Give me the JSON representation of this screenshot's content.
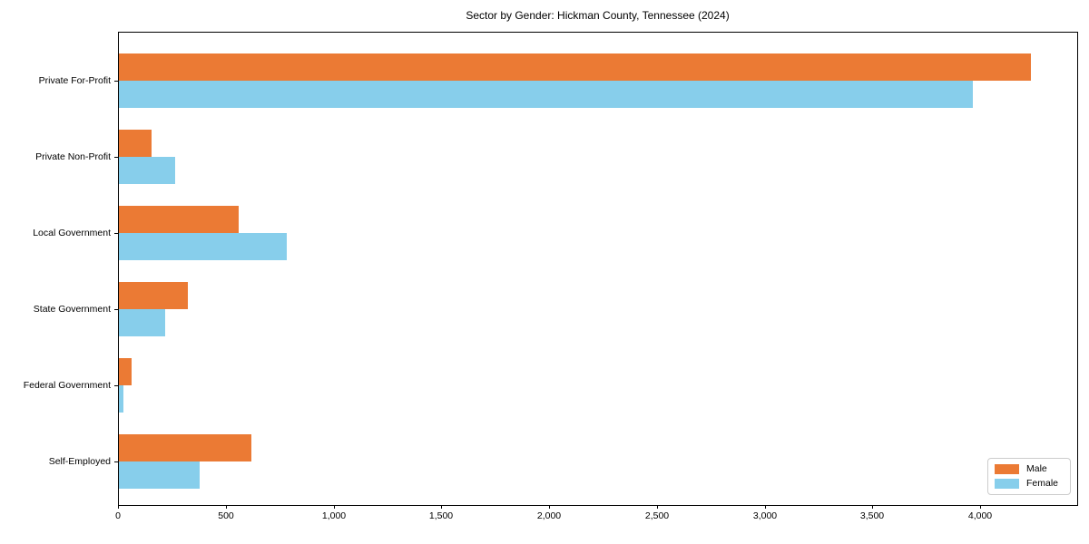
{
  "title": "Sector by Gender: Hickman County, Tennessee (2024)",
  "chart_data": {
    "type": "bar",
    "orientation": "horizontal",
    "title": "Sector by Gender: Hickman County, Tennessee (2024)",
    "categories": [
      "Private For-Profit",
      "Private Non-Profit",
      "Local Government",
      "State Government",
      "Federal Government",
      "Self-Employed"
    ],
    "series": [
      {
        "name": "Male",
        "color": "#EB7A34",
        "values": [
          4230,
          150,
          555,
          320,
          60,
          615
        ]
      },
      {
        "name": "Female",
        "color": "#87CEEB",
        "values": [
          3960,
          260,
          780,
          215,
          20,
          375
        ]
      }
    ],
    "xlim": [
      0,
      4446
    ],
    "x_ticks": [
      0,
      500,
      1000,
      1500,
      2000,
      2500,
      3000,
      3500,
      4000
    ],
    "x_tick_labels": [
      "0",
      "500",
      "1,000",
      "1,500",
      "2,000",
      "2,500",
      "3,000",
      "3,500",
      "4,000"
    ],
    "grid": false,
    "legend_position": "lower right"
  },
  "legend": {
    "male_label": "Male",
    "female_label": "Female"
  }
}
